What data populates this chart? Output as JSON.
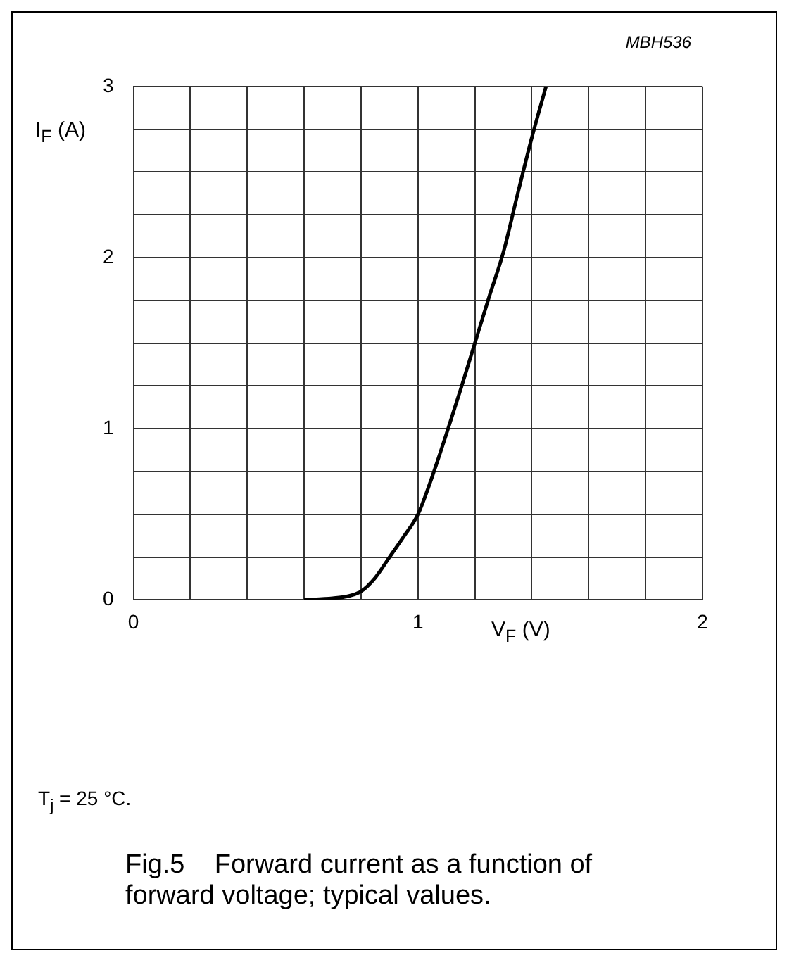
{
  "chart_data": {
    "type": "line",
    "title": "Fig.5    Forward current as a function of forward voltage; typical values.",
    "xlabel": "V$_{F}$ (V)",
    "ylabel": "I$_{F}$ (A)",
    "annotations": [
      "MBH536",
      "T$_{j}$ = 25 °C."
    ],
    "series": [
      {
        "color": "#000000",
        "x": [
          0.6,
          0.7,
          0.75,
          0.8,
          0.85,
          0.9,
          0.95,
          1.0,
          1.05,
          1.1,
          1.15,
          1.2,
          1.25,
          1.3,
          1.35,
          1.4,
          1.45
        ],
        "values": [
          0,
          0.01,
          0.02,
          0.05,
          0.13,
          0.25,
          0.37,
          0.5,
          0.72,
          0.97,
          1.23,
          1.5,
          1.77,
          2.03,
          2.37,
          2.7,
          3.0
        ]
      }
    ],
    "xlim": [
      0,
      2
    ],
    "xticks": [
      0,
      {
        "value": 0.2,
        "label": null
      },
      {
        "value": 0.4,
        "label": null
      },
      {
        "value": 0.6,
        "label": null
      },
      {
        "value": 0.8,
        "label": null
      },
      1,
      {
        "value": 1.2,
        "label": null
      },
      {
        "value": 1.4,
        "label": null
      },
      {
        "value": 1.6,
        "label": null
      },
      {
        "value": 1.8,
        "label": null
      },
      2
    ],
    "ylim": [
      0,
      3
    ],
    "yticks": [
      0,
      {
        "value": 0.25,
        "label": null
      },
      {
        "value": 0.5,
        "label": null
      },
      {
        "value": 0.75,
        "label": null
      },
      1,
      {
        "value": 1.25,
        "label": null
      },
      {
        "value": 1.5,
        "label": null
      },
      {
        "value": 1.75,
        "label": null
      },
      2,
      {
        "value": 2.25,
        "label": null
      },
      {
        "value": 2.5,
        "label": null
      },
      {
        "value": 2.75,
        "label": null
      },
      3
    ],
    "grid": true,
    "legend": false,
    "marker": "none",
    "line_style": "solid"
  }
}
